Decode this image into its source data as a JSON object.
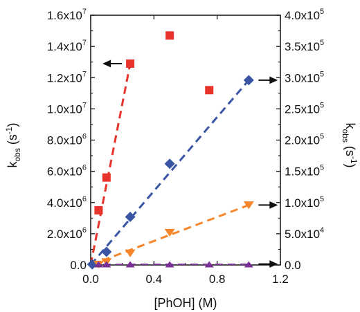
{
  "chart_data": {
    "type": "scatter",
    "x_axis": {
      "label": "[PhOH] (M)",
      "range": [
        0,
        1.2
      ],
      "ticks": [
        0.0,
        0.4,
        0.8,
        1.2
      ],
      "tick_labels": [
        "0.0",
        "0.4",
        "0.8",
        "1.2"
      ]
    },
    "y_left": {
      "label_main": "k",
      "label_sub": "obs",
      "label_unit": " (s",
      "label_exp": "-1",
      "label_close": ")",
      "range": [
        0,
        16000000
      ],
      "ticks": [
        0,
        2000000,
        4000000,
        6000000,
        8000000,
        10000000,
        12000000,
        14000000,
        16000000
      ],
      "tick_labels": [
        {
          "mant": "0.0",
          "exp": ""
        },
        {
          "mant": "2.0x10",
          "exp": "6"
        },
        {
          "mant": "4.0x10",
          "exp": "6"
        },
        {
          "mant": "6.0x10",
          "exp": "6"
        },
        {
          "mant": "8.0x10",
          "exp": "6"
        },
        {
          "mant": "1.0x10",
          "exp": "7"
        },
        {
          "mant": "1.2x10",
          "exp": "7"
        },
        {
          "mant": "1.4x10",
          "exp": "7"
        },
        {
          "mant": "1.6x10",
          "exp": "7"
        }
      ]
    },
    "y_right": {
      "label_main": "k",
      "label_sub": "obs",
      "label_unit": " (s",
      "label_exp": "-1",
      "label_close": ")",
      "range": [
        0,
        400000
      ],
      "ticks": [
        0,
        50000,
        100000,
        150000,
        200000,
        250000,
        300000,
        350000,
        400000
      ],
      "tick_labels": [
        {
          "mant": "0.0",
          "exp": ""
        },
        {
          "mant": "5.0x10",
          "exp": "4"
        },
        {
          "mant": "1.0x10",
          "exp": "5"
        },
        {
          "mant": "1.5x10",
          "exp": "5"
        },
        {
          "mant": "2.0x10",
          "exp": "5"
        },
        {
          "mant": "2.5x10",
          "exp": "5"
        },
        {
          "mant": "3.0x10",
          "exp": "5"
        },
        {
          "mant": "3.5x10",
          "exp": "5"
        },
        {
          "mant": "4.0x10",
          "exp": "5"
        }
      ]
    },
    "series": [
      {
        "axis": "left",
        "marker": "square",
        "color": "#e8322c",
        "x": [
          0.05,
          0.1,
          0.25,
          0.5,
          0.75
        ],
        "y": [
          3500000,
          5600000,
          12900000,
          14700000,
          11200000
        ],
        "fit": {
          "x": [
            0.0,
            0.25
          ],
          "y": [
            0,
            12900000
          ]
        }
      },
      {
        "axis": "right",
        "marker": "diamond",
        "color": "#3a55a4",
        "x": [
          0.01,
          0.1,
          0.25,
          0.5,
          1.0
        ],
        "y": [
          1000,
          21000,
          77000,
          162000,
          296000
        ],
        "fit": {
          "x": [
            0.0,
            1.0
          ],
          "y": [
            0,
            296000
          ]
        }
      },
      {
        "axis": "right",
        "marker": "triangle-down",
        "color": "#f5862b",
        "x": [
          0.05,
          0.1,
          0.25,
          0.5,
          1.0
        ],
        "y": [
          1000,
          5000,
          19000,
          52000,
          96000
        ],
        "fit": {
          "x": [
            0.0,
            1.0
          ],
          "y": [
            0,
            96000
          ]
        }
      },
      {
        "axis": "right",
        "marker": "triangle-up",
        "color": "#7a2f96",
        "x": [
          0.05,
          0.1,
          0.25,
          0.5,
          0.75,
          1.0
        ],
        "y": [
          400,
          400,
          400,
          400,
          400,
          400
        ],
        "fit": {
          "x": [
            0.0,
            1.0
          ],
          "y": [
            300,
            500
          ]
        }
      }
    ],
    "annotations": [
      {
        "type": "arrow",
        "direction": "left",
        "x": 0.25,
        "y_axis": "left",
        "y": 12900000
      },
      {
        "type": "arrow",
        "direction": "right",
        "x": 1.0,
        "y_axis": "right",
        "y": 296000
      },
      {
        "type": "arrow",
        "direction": "right",
        "x": 1.0,
        "y_axis": "right",
        "y": 96000
      },
      {
        "type": "arrow",
        "direction": "right",
        "x": 1.0,
        "y_axis": "right",
        "y": 1500
      }
    ],
    "grid": false,
    "legend": "none"
  }
}
